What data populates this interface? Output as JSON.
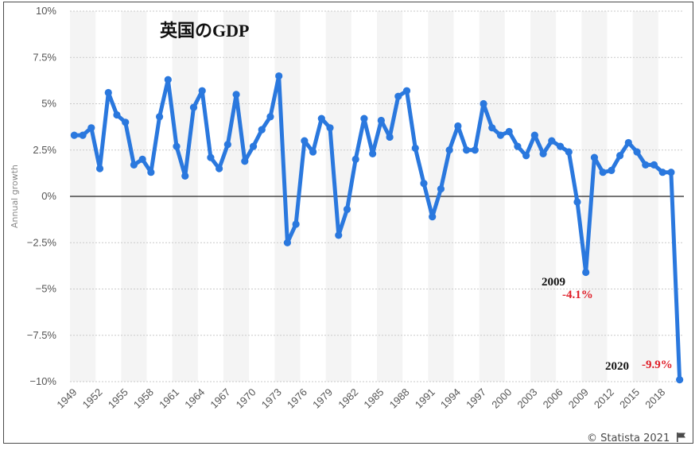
{
  "chart_data": {
    "type": "line",
    "title": "英国のGDP",
    "ylabel": "Annual growth",
    "xlabel": "",
    "ylim": [
      -10,
      10
    ],
    "y_ticks": [
      10,
      7.5,
      5,
      2.5,
      0,
      -2.5,
      -5,
      -7.5,
      -10
    ],
    "y_tick_labels": [
      "10%",
      "7.5%",
      "5%",
      "2.5%",
      "0%",
      "-2.5%",
      "-5%",
      "-7.5%",
      "-10%"
    ],
    "x_ticks": [
      1949,
      1952,
      1955,
      1958,
      1961,
      1964,
      1967,
      1970,
      1973,
      1976,
      1979,
      1982,
      1985,
      1988,
      1991,
      1994,
      1997,
      2000,
      2003,
      2006,
      2009,
      2012,
      2015,
      2018
    ],
    "x": [
      1949,
      1950,
      1951,
      1952,
      1953,
      1954,
      1955,
      1956,
      1957,
      1958,
      1959,
      1960,
      1961,
      1962,
      1963,
      1964,
      1965,
      1966,
      1967,
      1968,
      1969,
      1970,
      1971,
      1972,
      1973,
      1974,
      1975,
      1976,
      1977,
      1978,
      1979,
      1980,
      1981,
      1982,
      1983,
      1984,
      1985,
      1986,
      1987,
      1988,
      1989,
      1990,
      1991,
      1992,
      1993,
      1994,
      1995,
      1996,
      1997,
      1998,
      1999,
      2000,
      2001,
      2002,
      2003,
      2004,
      2005,
      2006,
      2007,
      2008,
      2009,
      2010,
      2011,
      2012,
      2013,
      2014,
      2015,
      2016,
      2017,
      2018,
      2019,
      2020
    ],
    "series": [
      {
        "values": [
          3.3,
          3.3,
          3.7,
          1.5,
          5.6,
          4.4,
          4.0,
          1.7,
          2.0,
          1.3,
          4.3,
          6.3,
          2.7,
          1.1,
          4.8,
          5.7,
          2.1,
          1.5,
          2.8,
          5.5,
          1.9,
          2.7,
          3.6,
          4.3,
          6.5,
          -2.5,
          -1.5,
          3.0,
          2.4,
          4.2,
          3.7,
          -2.1,
          -0.7,
          2.0,
          4.2,
          2.3,
          4.1,
          3.2,
          5.4,
          5.7,
          2.6,
          0.7,
          -1.1,
          0.4,
          2.5,
          3.8,
          2.5,
          2.5,
          5.0,
          3.7,
          3.3,
          3.5,
          2.7,
          2.2,
          3.3,
          2.3,
          3.0,
          2.7,
          2.4,
          -0.3,
          -4.1,
          2.1,
          1.3,
          1.4,
          2.2,
          2.9,
          2.4,
          1.7,
          1.7,
          1.3,
          1.3,
          -9.9
        ],
        "color": "#2a78de"
      }
    ],
    "annotations": [
      {
        "year": "2009",
        "value": "-4.1%"
      },
      {
        "year": "2020",
        "value": "-9.9%"
      }
    ],
    "grid": true,
    "legend": "none"
  },
  "credit": "© Statista 2021"
}
